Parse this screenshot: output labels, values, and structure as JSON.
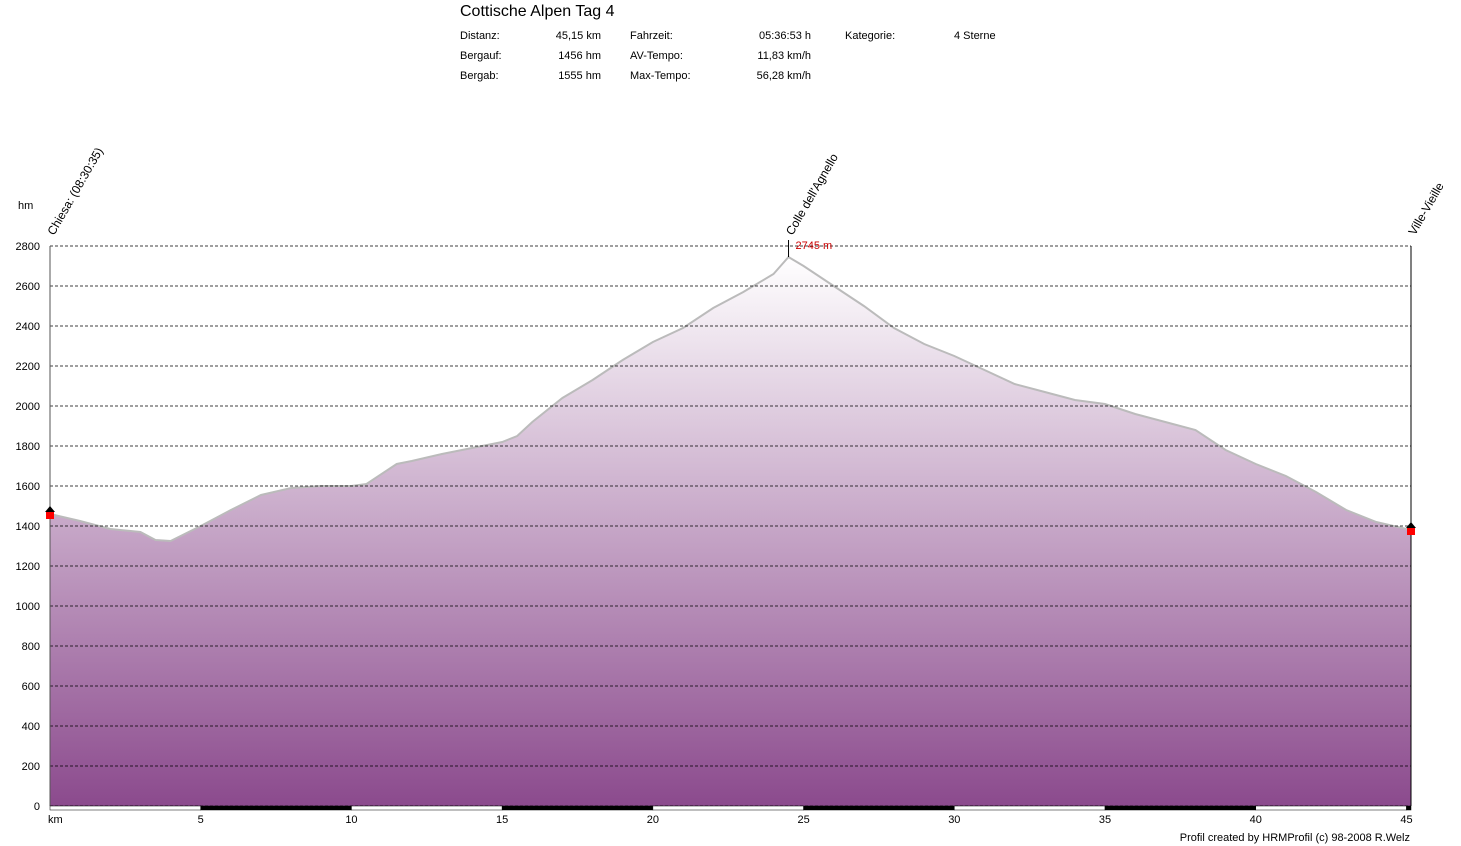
{
  "header": {
    "title": "Cottische Alpen Tag 4",
    "stats": [
      {
        "label": "Distanz:",
        "value": "45,15 km"
      },
      {
        "label": "Bergauf:",
        "value": "1456 hm"
      },
      {
        "label": "Bergab:",
        "value": "1555 hm"
      },
      {
        "label": "Fahrzeit:",
        "value": "05:36:53 h"
      },
      {
        "label": "AV-Tempo:",
        "value": "11,83 km/h"
      },
      {
        "label": "Max-Tempo:",
        "value": "56,28 km/h"
      },
      {
        "label": "Kategorie:",
        "value": "4 Sterne"
      }
    ]
  },
  "footer": {
    "credit": "Profil created by HRMProfil (c) 98-2008 R.Welz"
  },
  "chart_data": {
    "type": "area",
    "ylabel": "hm",
    "xlabel": "km",
    "xlim": [
      0,
      45.15
    ],
    "ylim": [
      0,
      2800
    ],
    "grid": true,
    "x_ticks": [
      5,
      10,
      15,
      20,
      25,
      30,
      35,
      40,
      45
    ],
    "y_ticks": [
      0,
      200,
      400,
      600,
      800,
      1000,
      1200,
      1400,
      1600,
      1800,
      2000,
      2200,
      2400,
      2600,
      2800
    ],
    "fill_colors": {
      "top": "#ffffff",
      "bottom": "#8b4a8d"
    },
    "line_color": "#bbbbbb",
    "series": [
      {
        "x": [
          0,
          1,
          2,
          3,
          3.5,
          4,
          5,
          6,
          7,
          8,
          9,
          10,
          10.5,
          11,
          11.5,
          12,
          13,
          14,
          15,
          15.5,
          16,
          17,
          18,
          19,
          20,
          21,
          22,
          23,
          24,
          24.5,
          25,
          26,
          27,
          28,
          29,
          30,
          31,
          32,
          33,
          34,
          35,
          36,
          37,
          38,
          39,
          40,
          41,
          42,
          43,
          44,
          45.15
        ],
        "y": [
          1460,
          1425,
          1385,
          1370,
          1330,
          1325,
          1400,
          1480,
          1555,
          1590,
          1600,
          1600,
          1610,
          1660,
          1710,
          1725,
          1760,
          1790,
          1820,
          1850,
          1920,
          2040,
          2130,
          2230,
          2320,
          2390,
          2490,
          2570,
          2660,
          2745,
          2700,
          2600,
          2500,
          2390,
          2310,
          2250,
          2180,
          2110,
          2070,
          2030,
          2010,
          1960,
          1920,
          1880,
          1780,
          1710,
          1650,
          1570,
          1480,
          1420,
          1380
        ]
      }
    ],
    "waypoints": [
      {
        "x": 0,
        "label": "Chiesa: (08:30:35)"
      },
      {
        "x": 24.5,
        "label": "Colle dell'Agnello"
      },
      {
        "x": 45.15,
        "label": "Ville-Vieille"
      }
    ],
    "annotations": [
      {
        "x": 24.5,
        "y": 2745,
        "text": "2745 m",
        "color": "#cc0000"
      }
    ]
  }
}
